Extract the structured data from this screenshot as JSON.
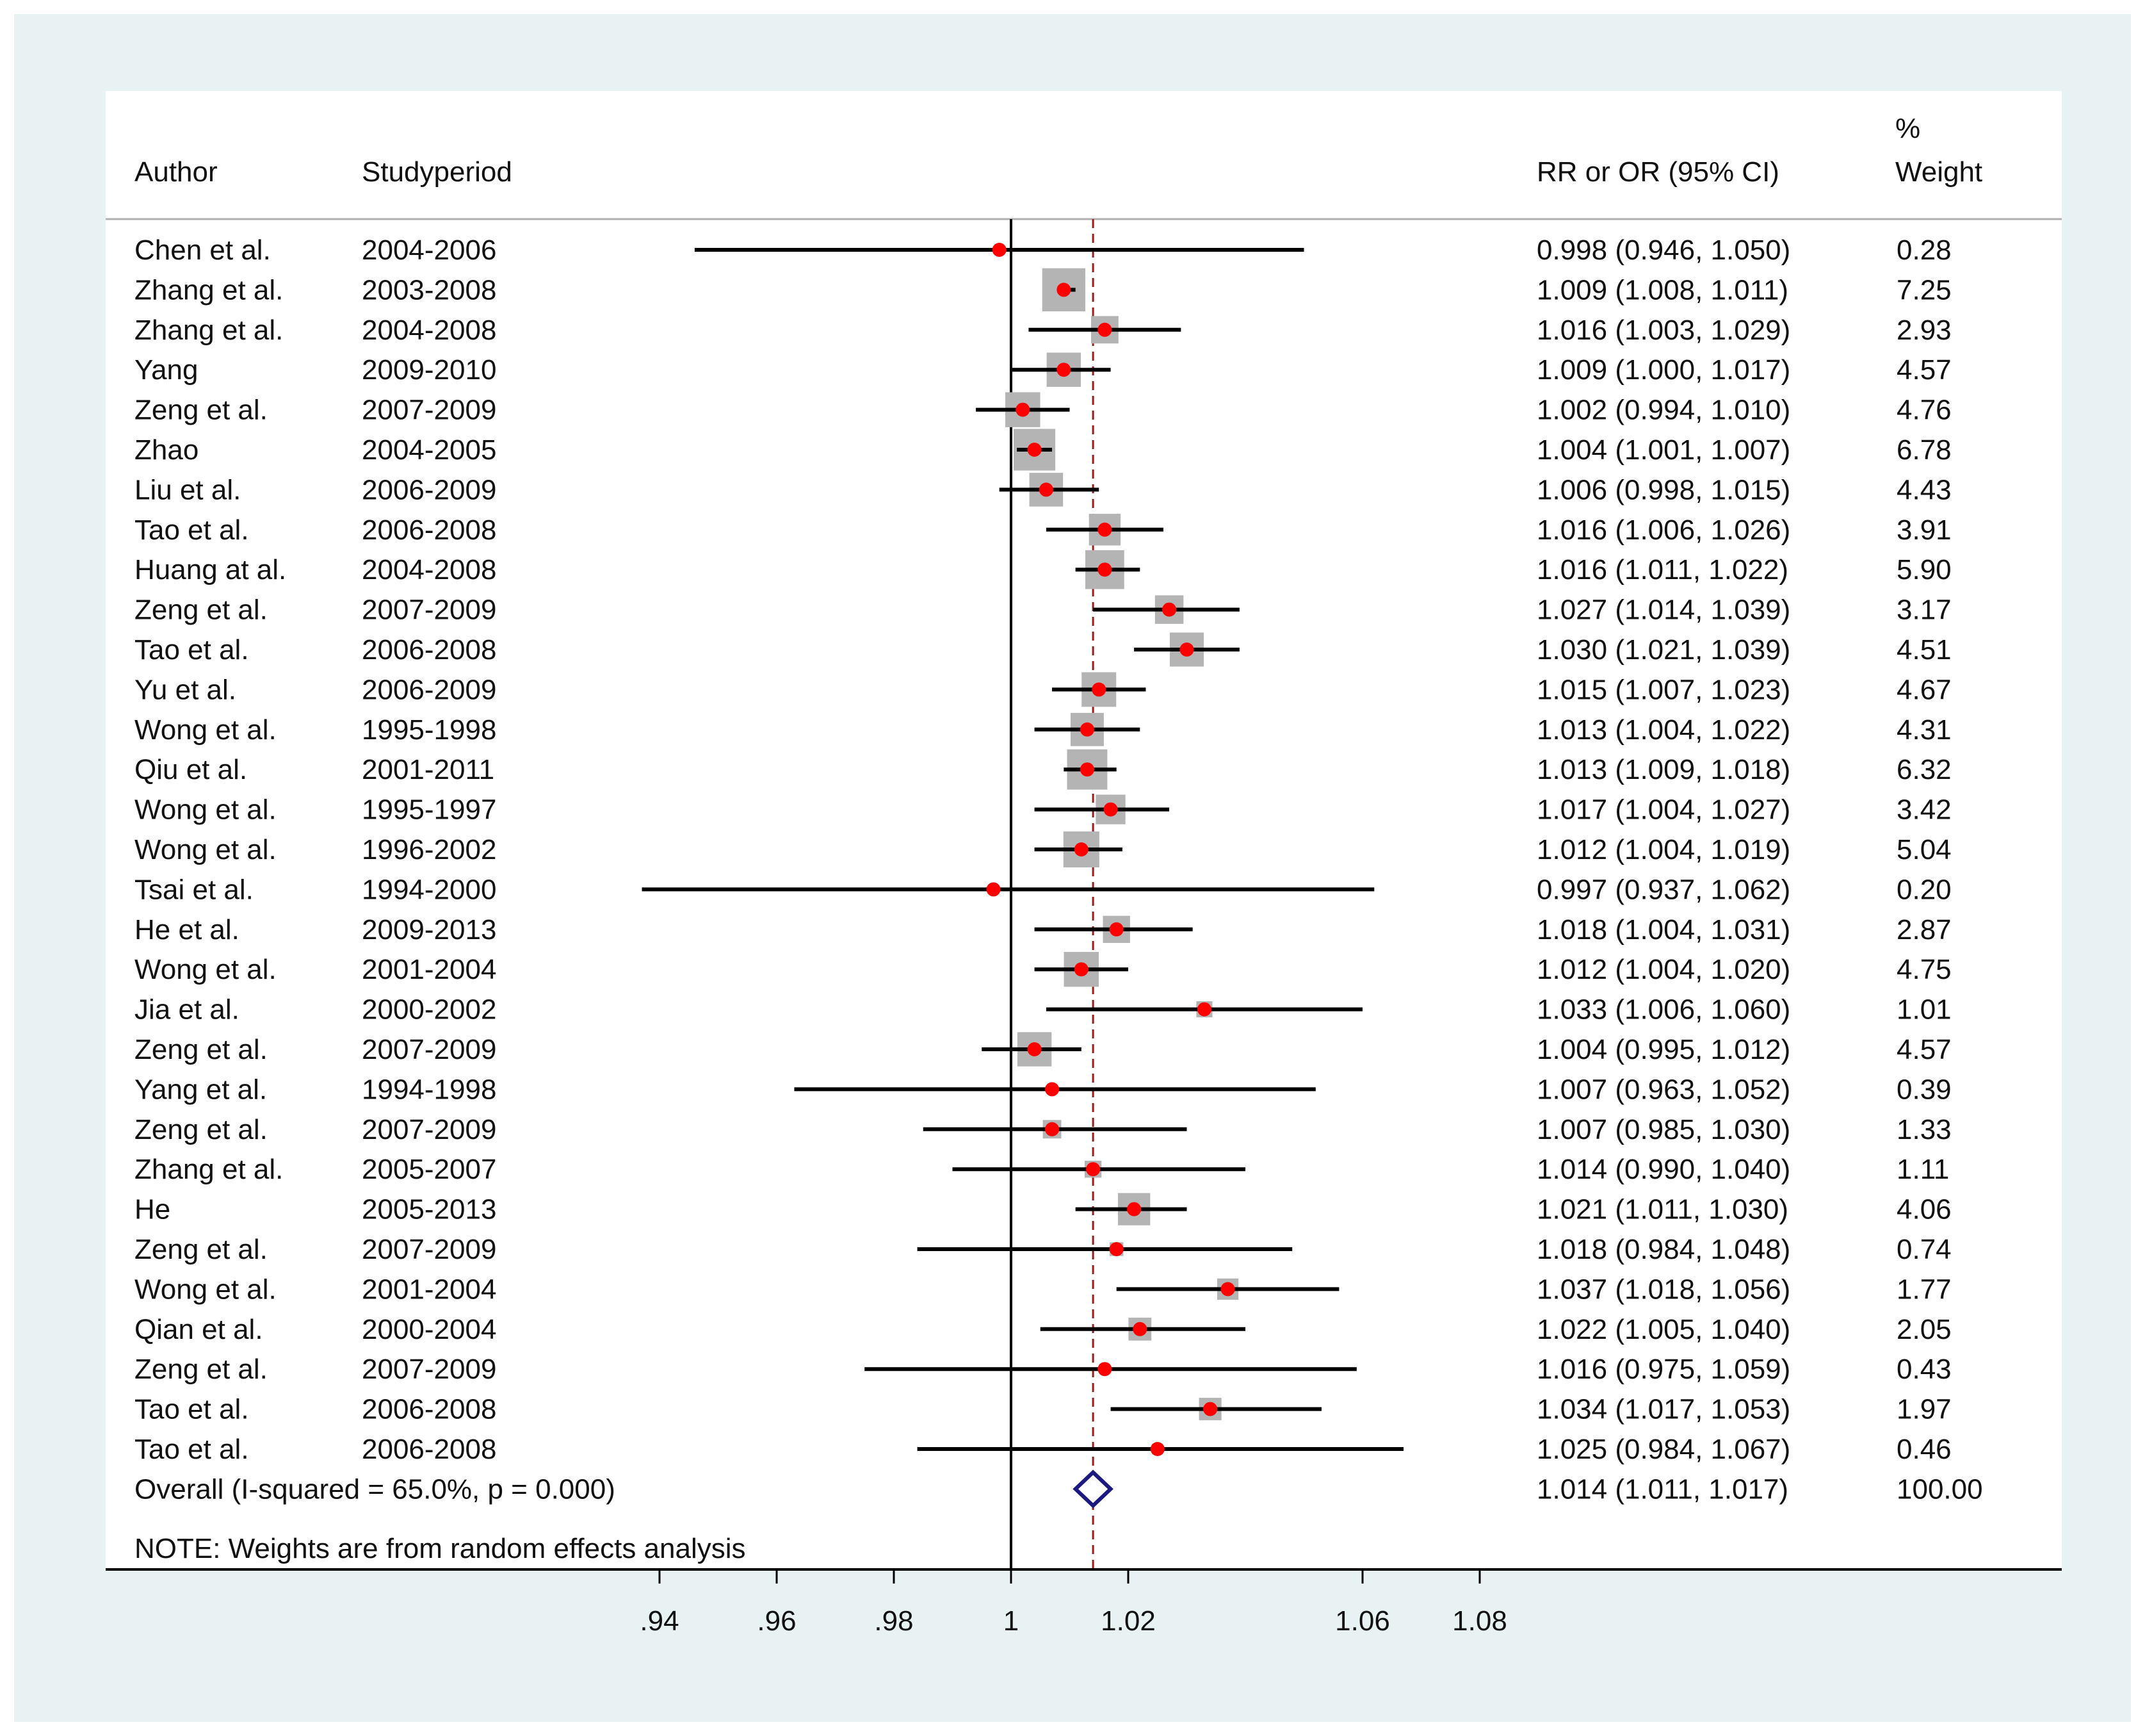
{
  "chart_data": {
    "type": "forest",
    "headers": {
      "author": "Author",
      "period": "Studyperiod",
      "estimate": "RR or OR (95% CI)",
      "weight_top": "%",
      "weight_bottom": "Weight"
    },
    "xlim": [
      0.93,
      1.08
    ],
    "null_line": 1,
    "overall_line": 1.014,
    "xticks": [
      0.94,
      0.96,
      0.98,
      1,
      1.02,
      1.06,
      1.08
    ],
    "xtick_labels": [
      ".94",
      ".96",
      ".98",
      "1",
      "1.02",
      "1.06",
      "1.08"
    ],
    "studies": [
      {
        "author": "Chen et al.",
        "period": "2004-2006",
        "est": 0.998,
        "lo": 0.946,
        "hi": 1.05,
        "weight": 0.28,
        "ci_text": "0.998 (0.946, 1.050)",
        "weight_text": "0.28"
      },
      {
        "author": "Zhang et al.",
        "period": "2003-2008",
        "est": 1.009,
        "lo": 1.008,
        "hi": 1.011,
        "weight": 7.25,
        "ci_text": "1.009 (1.008, 1.011)",
        "weight_text": "7.25"
      },
      {
        "author": "Zhang et al.",
        "period": "2004-2008",
        "est": 1.016,
        "lo": 1.003,
        "hi": 1.029,
        "weight": 2.93,
        "ci_text": "1.016 (1.003, 1.029)",
        "weight_text": "2.93"
      },
      {
        "author": "Yang",
        "period": "2009-2010",
        "est": 1.009,
        "lo": 1.0,
        "hi": 1.017,
        "weight": 4.57,
        "ci_text": "1.009 (1.000, 1.017)",
        "weight_text": "4.57"
      },
      {
        "author": "Zeng et al.",
        "period": "2007-2009",
        "est": 1.002,
        "lo": 0.994,
        "hi": 1.01,
        "weight": 4.76,
        "ci_text": "1.002 (0.994, 1.010)",
        "weight_text": "4.76"
      },
      {
        "author": "Zhao",
        "period": "2004-2005",
        "est": 1.004,
        "lo": 1.001,
        "hi": 1.007,
        "weight": 6.78,
        "ci_text": "1.004 (1.001, 1.007)",
        "weight_text": "6.78"
      },
      {
        "author": "Liu et al.",
        "period": "2006-2009",
        "est": 1.006,
        "lo": 0.998,
        "hi": 1.015,
        "weight": 4.43,
        "ci_text": "1.006 (0.998, 1.015)",
        "weight_text": "4.43"
      },
      {
        "author": "Tao et al.",
        "period": "2006-2008",
        "est": 1.016,
        "lo": 1.006,
        "hi": 1.026,
        "weight": 3.91,
        "ci_text": "1.016 (1.006, 1.026)",
        "weight_text": "3.91"
      },
      {
        "author": "Huang at al.",
        "period": "2004-2008",
        "est": 1.016,
        "lo": 1.011,
        "hi": 1.022,
        "weight": 5.9,
        "ci_text": "1.016 (1.011, 1.022)",
        "weight_text": "5.90"
      },
      {
        "author": "Zeng et al.",
        "period": "2007-2009",
        "est": 1.027,
        "lo": 1.014,
        "hi": 1.039,
        "weight": 3.17,
        "ci_text": "1.027 (1.014, 1.039)",
        "weight_text": "3.17"
      },
      {
        "author": "Tao et al.",
        "period": "2006-2008",
        "est": 1.03,
        "lo": 1.021,
        "hi": 1.039,
        "weight": 4.51,
        "ci_text": "1.030 (1.021, 1.039)",
        "weight_text": "4.51"
      },
      {
        "author": "Yu et al.",
        "period": "2006-2009",
        "est": 1.015,
        "lo": 1.007,
        "hi": 1.023,
        "weight": 4.67,
        "ci_text": "1.015 (1.007, 1.023)",
        "weight_text": "4.67"
      },
      {
        "author": "Wong et al.",
        "period": "1995-1998",
        "est": 1.013,
        "lo": 1.004,
        "hi": 1.022,
        "weight": 4.31,
        "ci_text": "1.013 (1.004, 1.022)",
        "weight_text": "4.31"
      },
      {
        "author": "Qiu et al.",
        "period": "2001-2011",
        "est": 1.013,
        "lo": 1.009,
        "hi": 1.018,
        "weight": 6.32,
        "ci_text": "1.013 (1.009, 1.018)",
        "weight_text": "6.32"
      },
      {
        "author": "Wong et al.",
        "period": "1995-1997",
        "est": 1.017,
        "lo": 1.004,
        "hi": 1.027,
        "weight": 3.42,
        "ci_text": "1.017 (1.004, 1.027)",
        "weight_text": "3.42"
      },
      {
        "author": "Wong et al.",
        "period": "1996-2002",
        "est": 1.012,
        "lo": 1.004,
        "hi": 1.019,
        "weight": 5.04,
        "ci_text": "1.012 (1.004, 1.019)",
        "weight_text": "5.04"
      },
      {
        "author": "Tsai et al.",
        "period": "1994-2000",
        "est": 0.997,
        "lo": 0.937,
        "hi": 1.062,
        "weight": 0.2,
        "ci_text": "0.997 (0.937, 1.062)",
        "weight_text": "0.20"
      },
      {
        "author": "He et al.",
        "period": "2009-2013",
        "est": 1.018,
        "lo": 1.004,
        "hi": 1.031,
        "weight": 2.87,
        "ci_text": "1.018 (1.004, 1.031)",
        "weight_text": "2.87"
      },
      {
        "author": "Wong et al.",
        "period": "2001-2004",
        "est": 1.012,
        "lo": 1.004,
        "hi": 1.02,
        "weight": 4.75,
        "ci_text": "1.012 (1.004, 1.020)",
        "weight_text": "4.75"
      },
      {
        "author": "Jia et al.",
        "period": "2000-2002",
        "est": 1.033,
        "lo": 1.006,
        "hi": 1.06,
        "weight": 1.01,
        "ci_text": "1.033 (1.006, 1.060)",
        "weight_text": "1.01"
      },
      {
        "author": "Zeng et al.",
        "period": "2007-2009",
        "est": 1.004,
        "lo": 0.995,
        "hi": 1.012,
        "weight": 4.57,
        "ci_text": "1.004 (0.995, 1.012)",
        "weight_text": "4.57"
      },
      {
        "author": "Yang et al.",
        "period": "1994-1998",
        "est": 1.007,
        "lo": 0.963,
        "hi": 1.052,
        "weight": 0.39,
        "ci_text": "1.007 (0.963, 1.052)",
        "weight_text": "0.39"
      },
      {
        "author": "Zeng et al.",
        "period": "2007-2009",
        "est": 1.007,
        "lo": 0.985,
        "hi": 1.03,
        "weight": 1.33,
        "ci_text": "1.007 (0.985, 1.030)",
        "weight_text": "1.33"
      },
      {
        "author": "Zhang et al.",
        "period": "2005-2007",
        "est": 1.014,
        "lo": 0.99,
        "hi": 1.04,
        "weight": 1.11,
        "ci_text": "1.014 (0.990, 1.040)",
        "weight_text": "1.11"
      },
      {
        "author": "He",
        "period": "2005-2013",
        "est": 1.021,
        "lo": 1.011,
        "hi": 1.03,
        "weight": 4.06,
        "ci_text": "1.021 (1.011, 1.030)",
        "weight_text": "4.06"
      },
      {
        "author": "Zeng et al.",
        "period": "2007-2009",
        "est": 1.018,
        "lo": 0.984,
        "hi": 1.048,
        "weight": 0.74,
        "ci_text": "1.018 (0.984, 1.048)",
        "weight_text": "0.74"
      },
      {
        "author": "Wong et al.",
        "period": "2001-2004",
        "est": 1.037,
        "lo": 1.018,
        "hi": 1.056,
        "weight": 1.77,
        "ci_text": "1.037 (1.018, 1.056)",
        "weight_text": "1.77"
      },
      {
        "author": "Qian et al.",
        "period": "2000-2004",
        "est": 1.022,
        "lo": 1.005,
        "hi": 1.04,
        "weight": 2.05,
        "ci_text": "1.022 (1.005, 1.040)",
        "weight_text": "2.05"
      },
      {
        "author": "Zeng et al.",
        "period": "2007-2009",
        "est": 1.016,
        "lo": 0.975,
        "hi": 1.059,
        "weight": 0.43,
        "ci_text": "1.016 (0.975, 1.059)",
        "weight_text": "0.43"
      },
      {
        "author": "Tao et al.",
        "period": "2006-2008",
        "est": 1.034,
        "lo": 1.017,
        "hi": 1.053,
        "weight": 1.97,
        "ci_text": "1.034 (1.017, 1.053)",
        "weight_text": "1.97"
      },
      {
        "author": "Tao et al.",
        "period": "2006-2008",
        "est": 1.025,
        "lo": 0.984,
        "hi": 1.067,
        "weight": 0.46,
        "ci_text": "1.025 (0.984, 1.067)",
        "weight_text": "0.46"
      }
    ],
    "overall": {
      "label": "Overall  (I-squared = 65.0%, p = 0.000)",
      "est": 1.014,
      "lo": 1.011,
      "hi": 1.017,
      "ci_text": "1.014 (1.011, 1.017)",
      "weight_text": "100.00"
    },
    "note": "NOTE: Weights are from random effects analysis",
    "colors": {
      "frame_bg": "#e9f2f3",
      "plot_bg": "#ffffff",
      "point": "#ff0000",
      "weight_box": "#b4b4b4",
      "ci_line": "#000000",
      "overall_line": "#9b1c1c",
      "diamond": "#1a1a80",
      "text": "#111111"
    }
  }
}
